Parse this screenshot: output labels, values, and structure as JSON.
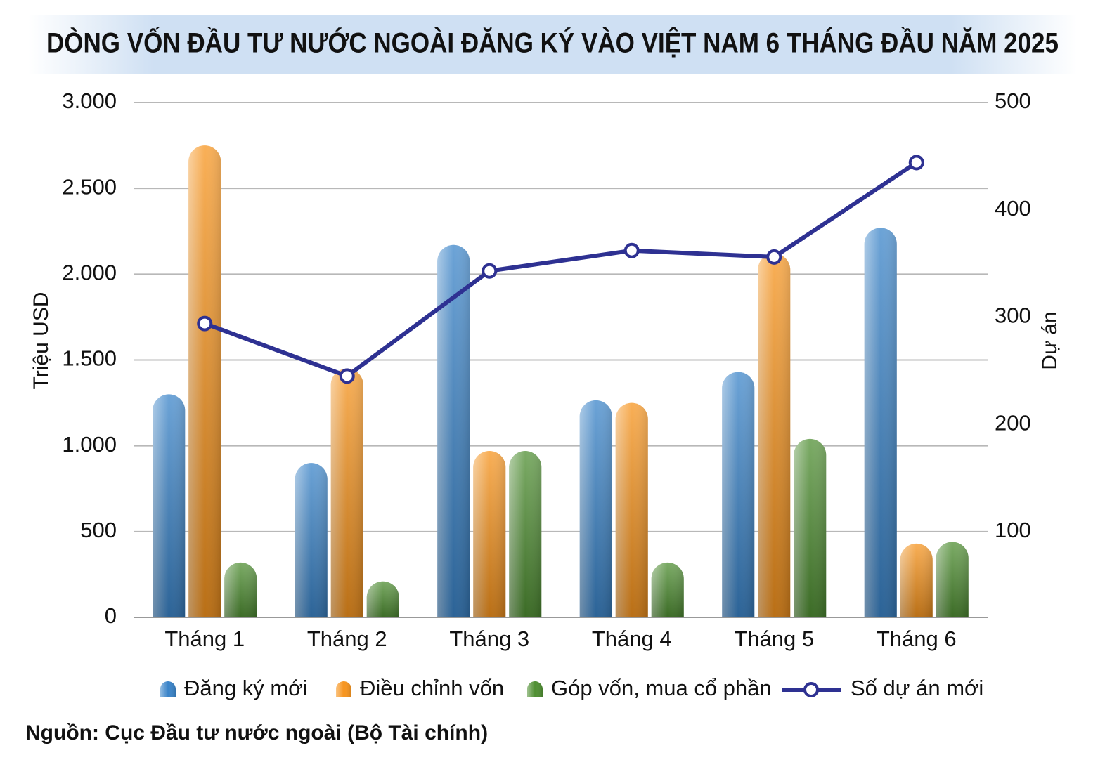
{
  "chart_data": {
    "type": "bar",
    "title": "DÒNG VỐN ĐẦU TƯ NƯỚC NGOÀI ĐĂNG KÝ VÀO VIỆT NAM 6 THÁNG ĐẦU NĂM 2025",
    "y_label": "Triệu USD",
    "y2_label": "Dự án",
    "source": "Nguồn: Cục Đầu tư nước ngoài (Bộ Tài chính)",
    "categories": [
      "Tháng 1",
      "Tháng 2",
      "Tháng 3",
      "Tháng 4",
      "Tháng 5",
      "Tháng 6"
    ],
    "series": [
      {
        "name": "Đăng ký mới",
        "color": "#3a84c9",
        "values": [
          1300,
          900,
          2170,
          1265,
          1430,
          2270
        ]
      },
      {
        "name": "Điều chỉnh vốn",
        "color": "#f7941d",
        "values": [
          2750,
          1450,
          970,
          1250,
          2120,
          430
        ]
      },
      {
        "name": "Góp vốn, mua cổ phần",
        "color": "#4f8f32",
        "values": [
          320,
          210,
          970,
          320,
          1040,
          440
        ]
      },
      {
        "name": "Số dự án mới",
        "color": "#2e3192",
        "type": "line",
        "axis": "y2",
        "values": [
          294,
          245,
          343,
          362,
          356,
          444
        ]
      }
    ],
    "ylim": [
      0,
      3000
    ],
    "yticks": [
      0,
      500,
      {
        "value": 1000,
        "label": "1.000"
      },
      {
        "value": 1500,
        "label": "1.500"
      },
      {
        "value": 2000,
        "label": "2.000"
      },
      {
        "value": 2500,
        "label": "2.500"
      },
      {
        "value": 3000,
        "label": "3.000"
      }
    ],
    "y2lim": [
      20,
      500
    ],
    "y2ticks": [
      100,
      200,
      300,
      400,
      500
    ],
    "grid": true
  }
}
